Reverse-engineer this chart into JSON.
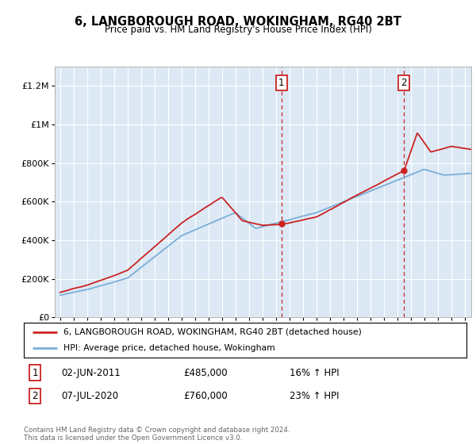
{
  "title": "6, LANGBOROUGH ROAD, WOKINGHAM, RG40 2BT",
  "subtitle": "Price paid vs. HM Land Registry's House Price Index (HPI)",
  "background_color": "#dce9f5",
  "hpi_color": "#7aaed6",
  "price_color": "#cc2222",
  "sale1_price": 485000,
  "sale2_price": 760000,
  "sale1_label": "02-JUN-2011",
  "sale2_label": "07-JUL-2020",
  "sale1_pct": "16%",
  "sale2_pct": "23%",
  "legend_line1": "6, LANGBOROUGH ROAD, WOKINGHAM, RG40 2BT (detached house)",
  "legend_line2": "HPI: Average price, detached house, Wokingham",
  "footer": "Contains HM Land Registry data © Crown copyright and database right 2024.\nThis data is licensed under the Open Government Licence v3.0.",
  "ylim": [
    0,
    1300000
  ],
  "yticks": [
    0,
    200000,
    400000,
    600000,
    800000,
    1000000,
    1200000
  ],
  "ytick_labels": [
    "£0",
    "£200K",
    "£400K",
    "£600K",
    "£800K",
    "£1M",
    "£1.2M"
  ],
  "start_year": 1995,
  "end_year": 2025,
  "dashed_line_color": "#cc2222",
  "sale1_year": 2011.42,
  "sale2_year": 2020.5
}
